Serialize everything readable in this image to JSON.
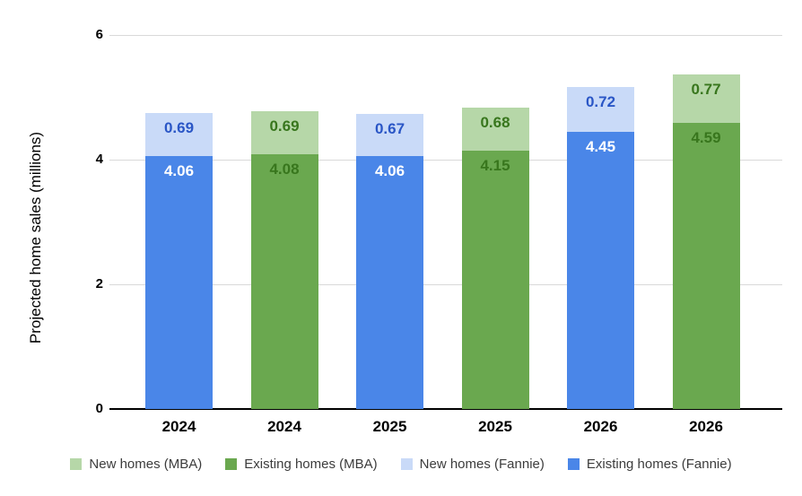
{
  "chart_data": {
    "type": "bar",
    "stacked": true,
    "title": "",
    "xlabel": "",
    "ylabel": "Projected home sales (millions)",
    "ylim": [
      0,
      6
    ],
    "yticks": [
      0,
      2,
      4,
      6
    ],
    "grid": true,
    "legend_position": "bottom",
    "categories": [
      "2024",
      "2024",
      "2025",
      "2025",
      "2026",
      "2026"
    ],
    "bars": [
      {
        "category": "2024",
        "source": "Fannie",
        "existing": 4.06,
        "new": 0.69
      },
      {
        "category": "2024",
        "source": "MBA",
        "existing": 4.08,
        "new": 0.69
      },
      {
        "category": "2025",
        "source": "Fannie",
        "existing": 4.06,
        "new": 0.67
      },
      {
        "category": "2025",
        "source": "MBA",
        "existing": 4.15,
        "new": 0.68
      },
      {
        "category": "2026",
        "source": "Fannie",
        "existing": 4.45,
        "new": 0.72
      },
      {
        "category": "2026",
        "source": "MBA",
        "existing": 4.59,
        "new": 0.77
      }
    ],
    "series": [
      {
        "name": "New homes (MBA)",
        "values": [
          null,
          0.69,
          null,
          0.68,
          null,
          0.77
        ]
      },
      {
        "name": "Existing homes (MBA)",
        "values": [
          null,
          4.08,
          null,
          4.15,
          null,
          4.59
        ]
      },
      {
        "name": "New homes (Fannie)",
        "values": [
          0.69,
          null,
          0.67,
          null,
          0.72,
          null
        ]
      },
      {
        "name": "Existing homes (Fannie)",
        "values": [
          4.06,
          null,
          4.06,
          null,
          4.45,
          null
        ]
      }
    ],
    "legend": [
      {
        "label": "New homes (MBA)",
        "color": "#b6d7a8"
      },
      {
        "label": "Existing homes (MBA)",
        "color": "#6aa84f"
      },
      {
        "label": "New homes (Fannie)",
        "color": "#c9daf8"
      },
      {
        "label": "Existing homes (Fannie)",
        "color": "#4a86e8"
      }
    ],
    "palette": {
      "Fannie": {
        "existing": "#4a86e8",
        "new": "#c9daf8",
        "existing_label": "#ffffff",
        "new_label": "#2a56c6"
      },
      "MBA": {
        "existing": "#6aa84f",
        "new": "#b6d7a8",
        "existing_label": "#38761d",
        "new_label": "#38761d"
      }
    },
    "colors": {
      "gridline": "#d9d9d9",
      "axis": "#000000",
      "tick_text": "#000000",
      "legend_text": "#3c3c3c",
      "background": "#ffffff"
    }
  }
}
